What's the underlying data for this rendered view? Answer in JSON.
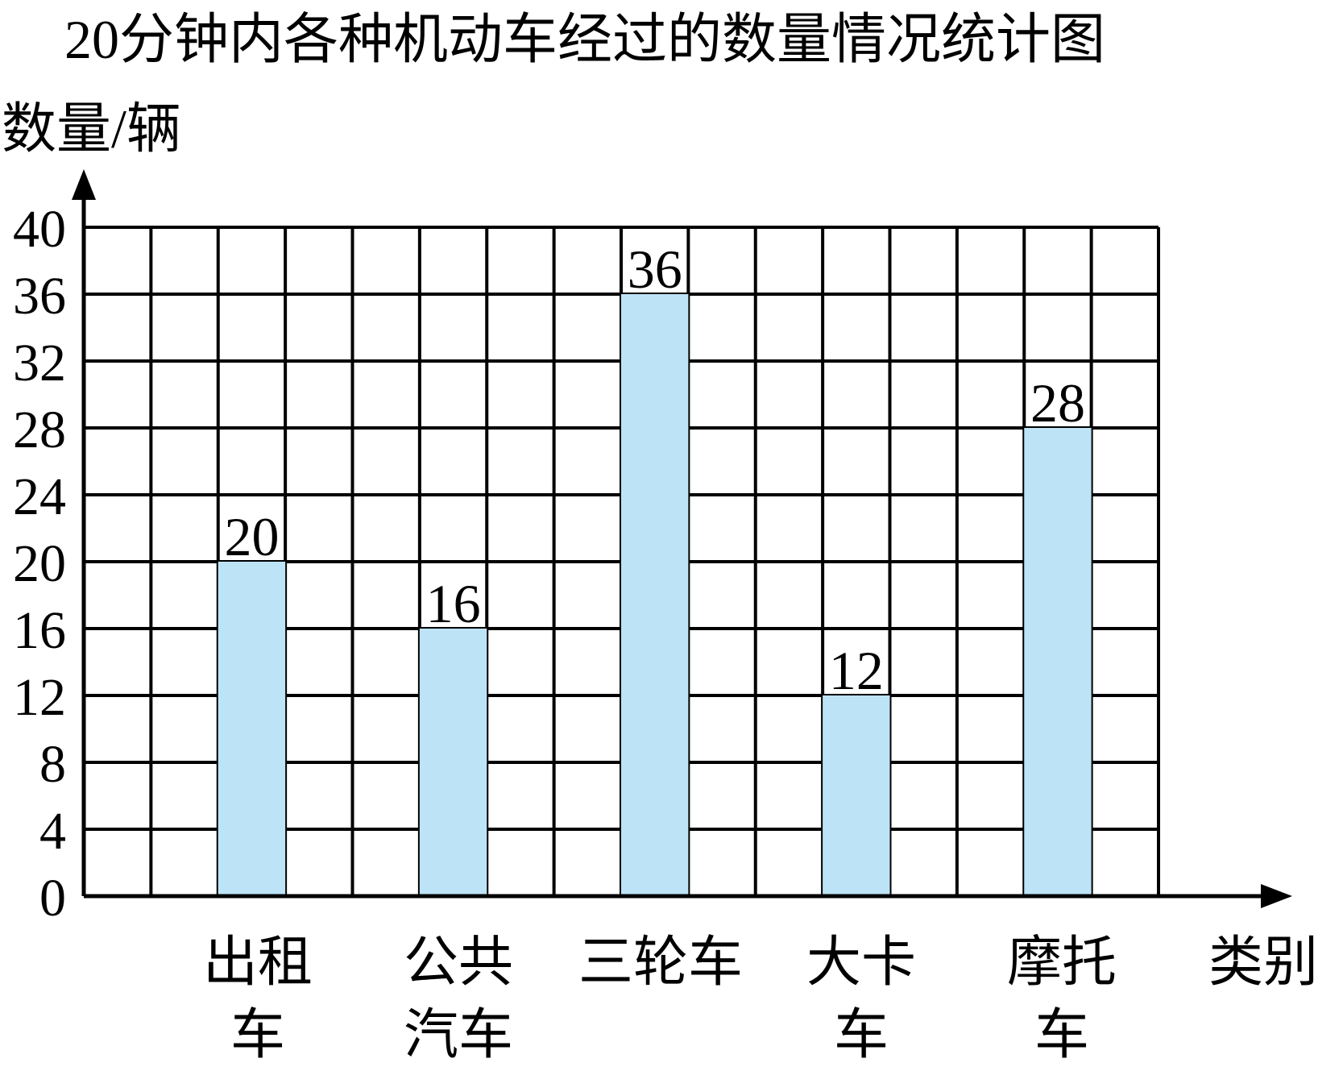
{
  "chart_data": {
    "type": "bar",
    "title": "20分钟内各种机动车经过的数量情况统计图",
    "ylabel": "数量/辆",
    "xlabel": "类别",
    "categories": [
      [
        "出租",
        "车"
      ],
      [
        "公共",
        "汽车"
      ],
      [
        "三轮车"
      ],
      [
        "大卡",
        "车"
      ],
      [
        "摩托",
        "车"
      ]
    ],
    "values": [
      20,
      16,
      36,
      12,
      28
    ],
    "data_labels": [
      "20",
      "16",
      "36",
      "12",
      "28"
    ],
    "ylim": [
      0,
      40
    ],
    "yticks": [
      0,
      4,
      8,
      12,
      16,
      20,
      24,
      28,
      32,
      36,
      40
    ],
    "grid": true,
    "bar_color": "#bde3f6"
  }
}
